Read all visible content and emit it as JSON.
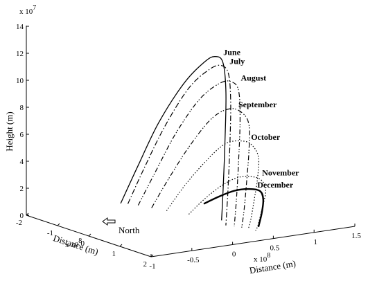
{
  "chart_data": {
    "type": "line",
    "projection": "3d",
    "title": "",
    "axes": {
      "x": {
        "label": "Distance (m)",
        "multiplier": "x 10",
        "exponent": "8",
        "range": [
          -2,
          2
        ],
        "ticks": [
          "-2",
          "-1",
          "0",
          "1",
          "2"
        ]
      },
      "y": {
        "label": "Distance (m)",
        "multiplier": "x 10",
        "exponent": "8",
        "range": [
          -1,
          1.5
        ],
        "ticks": [
          "-1",
          "-0.5",
          "0",
          "0.5",
          "1",
          "1.5"
        ]
      },
      "z": {
        "label": "Height (m)",
        "multiplier": "x 10",
        "exponent": "7",
        "range": [
          0,
          14
        ],
        "ticks": [
          "0",
          "2",
          "4",
          "6",
          "8",
          "10",
          "12",
          "14"
        ]
      }
    },
    "annotation": {
      "text": "North",
      "arrow": "left"
    },
    "series": [
      {
        "name": "June",
        "style": "solid",
        "points": [
          [
            -1.85,
            0.1,
            0.0
          ],
          [
            -1.5,
            0.18,
            3.0
          ],
          [
            -1.1,
            0.28,
            6.4
          ],
          [
            -0.6,
            0.4,
            9.6
          ],
          [
            -0.2,
            0.5,
            11.4
          ],
          [
            0.0,
            0.55,
            11.9
          ],
          [
            0.2,
            0.57,
            11.6
          ],
          [
            0.35,
            0.55,
            9.5
          ],
          [
            0.45,
            0.5,
            6.0
          ],
          [
            0.52,
            0.45,
            2.5
          ],
          [
            0.55,
            0.42,
            0.3
          ]
        ]
      },
      {
        "name": "July",
        "style": "dashdot",
        "points": [
          [
            -1.75,
            0.15,
            0.0
          ],
          [
            -1.4,
            0.22,
            2.9
          ],
          [
            -1.0,
            0.32,
            6.2
          ],
          [
            -0.5,
            0.42,
            9.3
          ],
          [
            -0.1,
            0.52,
            10.9
          ],
          [
            0.12,
            0.58,
            11.3
          ],
          [
            0.3,
            0.6,
            10.8
          ],
          [
            0.45,
            0.57,
            8.8
          ],
          [
            0.55,
            0.52,
            5.5
          ],
          [
            0.62,
            0.47,
            2.4
          ],
          [
            0.66,
            0.43,
            0.0
          ]
        ]
      },
      {
        "name": "August",
        "style": "dashdotdot",
        "points": [
          [
            -1.55,
            0.2,
            0.0
          ],
          [
            -1.2,
            0.28,
            2.7
          ],
          [
            -0.8,
            0.38,
            5.8
          ],
          [
            -0.3,
            0.48,
            8.6
          ],
          [
            0.1,
            0.58,
            10.0
          ],
          [
            0.35,
            0.63,
            10.2
          ],
          [
            0.5,
            0.65,
            9.6
          ],
          [
            0.62,
            0.62,
            7.5
          ],
          [
            0.7,
            0.57,
            4.5
          ],
          [
            0.76,
            0.52,
            1.8
          ],
          [
            0.8,
            0.48,
            0.0
          ]
        ]
      },
      {
        "name": "September",
        "style": "dashdotdot",
        "points": [
          [
            -1.25,
            0.25,
            0.0
          ],
          [
            -0.9,
            0.33,
            2.4
          ],
          [
            -0.5,
            0.43,
            5.0
          ],
          [
            -0.05,
            0.53,
            7.3
          ],
          [
            0.3,
            0.62,
            8.2
          ],
          [
            0.55,
            0.68,
            8.0
          ],
          [
            0.7,
            0.7,
            7.2
          ],
          [
            0.8,
            0.66,
            5.4
          ],
          [
            0.88,
            0.6,
            3.2
          ],
          [
            0.93,
            0.55,
            1.2
          ],
          [
            0.96,
            0.51,
            0.0
          ]
        ]
      },
      {
        "name": "October",
        "style": "dotted",
        "points": [
          [
            -0.9,
            0.3,
            0.0
          ],
          [
            -0.55,
            0.38,
            2.0
          ],
          [
            -0.15,
            0.48,
            4.0
          ],
          [
            0.25,
            0.58,
            5.6
          ],
          [
            0.6,
            0.66,
            6.0
          ],
          [
            0.8,
            0.7,
            5.8
          ],
          [
            0.95,
            0.72,
            5.0
          ],
          [
            1.02,
            0.68,
            3.5
          ],
          [
            1.07,
            0.62,
            2.0
          ],
          [
            1.1,
            0.57,
            0.7
          ],
          [
            1.12,
            0.53,
            0.0
          ]
        ]
      },
      {
        "name": "November",
        "style": "dotted",
        "points": [
          [
            -0.45,
            0.4,
            0.0
          ],
          [
            -0.15,
            0.48,
            1.3
          ],
          [
            0.2,
            0.56,
            2.5
          ],
          [
            0.55,
            0.63,
            3.3
          ],
          [
            0.85,
            0.7,
            3.5
          ],
          [
            1.05,
            0.73,
            3.3
          ],
          [
            1.18,
            0.72,
            2.7
          ],
          [
            1.24,
            0.67,
            1.9
          ],
          [
            1.27,
            0.62,
            1.0
          ],
          [
            1.29,
            0.58,
            0.3
          ],
          [
            1.3,
            0.55,
            0.0
          ]
        ]
      },
      {
        "name": "December",
        "style": "solid-bold",
        "points": [
          [
            -0.1,
            0.45,
            1.0
          ],
          [
            0.2,
            0.52,
            1.7
          ],
          [
            0.5,
            0.6,
            2.3
          ],
          [
            0.8,
            0.66,
            2.6
          ],
          [
            1.05,
            0.7,
            2.6
          ],
          [
            1.18,
            0.69,
            2.1
          ],
          [
            1.24,
            0.65,
            1.2
          ],
          [
            1.26,
            0.6,
            0.2
          ]
        ]
      }
    ]
  }
}
